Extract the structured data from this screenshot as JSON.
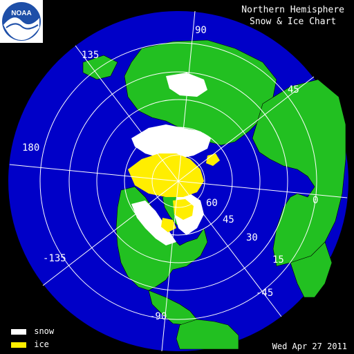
{
  "header": {
    "title_line1": "Northern Hemisphere",
    "title_line2": "Snow & Ice Chart"
  },
  "logo": {
    "text": "NOAA"
  },
  "date": "Wed Apr 27   2011",
  "legend": [
    {
      "label": "snow",
      "color": "#ffffff"
    },
    {
      "label": "ice",
      "color": "#ffee00"
    }
  ],
  "longitude_labels": [
    "90",
    "135",
    "45",
    "180",
    "0",
    "-135",
    "-45",
    "-90"
  ],
  "latitude_labels": [
    "60",
    "45",
    "30",
    "15"
  ],
  "colors": {
    "ocean": "#0000c8",
    "land": "#22c021",
    "snow": "#ffffff",
    "ice": "#ffee00",
    "graticule": "#ffffff",
    "border": "#000000"
  }
}
